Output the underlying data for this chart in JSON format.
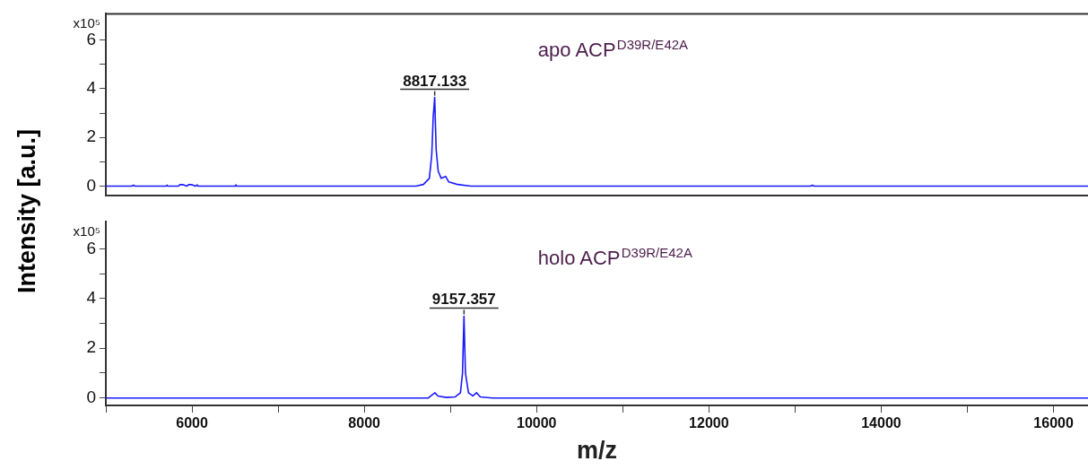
{
  "chart_data": [
    {
      "type": "line",
      "title": "apo ACP$^{D39R/E42A}$",
      "ylabel": "Intensity [a.u.]",
      "xlim": [
        5000,
        16400
      ],
      "ylim": [
        -0.37,
        7.07
      ],
      "yticks": [
        0,
        {
          "value": 1,
          "label": null
        },
        2,
        {
          "value": 3,
          "label": null
        },
        4,
        {
          "value": 5,
          "label": null
        },
        6
      ],
      "tick_labels": "y",
      "grid": false,
      "legend": false,
      "marker": "none",
      "annotations": [
        "x10⁵",
        {
          "text": "8817.133",
          "x": 8817.133,
          "y": 3.64
        }
      ],
      "series": [
        {
          "color": "#1a1aff",
          "x": [
            5000,
            5300,
            5320,
            5340,
            5700,
            5710,
            5720,
            5840,
            5860,
            5900,
            5940,
            5960,
            6000,
            6040,
            6060,
            6070,
            6500,
            6510,
            6520,
            8600,
            8686,
            8755,
            8783,
            8800,
            8817,
            8834,
            8858,
            8893,
            8944,
            8979,
            9082,
            9237,
            13180,
            13200,
            13220,
            16400
          ],
          "values": [
            0,
            0,
            0.04,
            0,
            0,
            0.04,
            0,
            0,
            0.06,
            0.06,
            0,
            0.06,
            0.06,
            0,
            0.05,
            0,
            0,
            0.05,
            0,
            0,
            0.07,
            0.32,
            1.28,
            2.85,
            3.64,
            1.5,
            0.61,
            0.32,
            0.4,
            0.18,
            0.07,
            0,
            0,
            0.04,
            0,
            0
          ]
        }
      ]
    },
    {
      "type": "line",
      "title": "holo ACP$^{D39R/E42A}$",
      "xlabel": "m/z",
      "xlim": [
        5000,
        16400
      ],
      "xticks": [
        {
          "value": 5000,
          "label": null
        },
        6000,
        {
          "value": 7000,
          "label": null
        },
        8000,
        {
          "value": 9000,
          "label": null
        },
        10000,
        {
          "value": 11000,
          "label": null
        },
        12000,
        {
          "value": 13000,
          "label": null
        },
        14000,
        {
          "value": 15000,
          "label": null
        },
        16000
      ],
      "ylim": [
        -0.3,
        7.08
      ],
      "yticks": [
        0,
        {
          "value": 1,
          "label": null
        },
        2,
        {
          "value": 3,
          "label": null
        },
        4,
        {
          "value": 5,
          "label": null
        },
        6
      ],
      "grid": false,
      "legend": false,
      "marker": "none",
      "annotations": [
        "x10⁵",
        {
          "text": "9157.357",
          "x": 9157.357,
          "y": 3.29
        }
      ],
      "series": [
        {
          "color": "#1a1aff",
          "x": [
            5000,
            8744,
            8779,
            8820,
            8854,
            8951,
            9054,
            9116,
            9140,
            9157,
            9174,
            9209,
            9260,
            9302,
            9347,
            9484,
            16400
          ],
          "values": [
            0,
            0,
            0.1,
            0.21,
            0.08,
            0.02,
            0.04,
            0.21,
            1.0,
            3.29,
            1.0,
            0.21,
            0.08,
            0.21,
            0.04,
            0,
            0
          ]
        }
      ]
    }
  ]
}
